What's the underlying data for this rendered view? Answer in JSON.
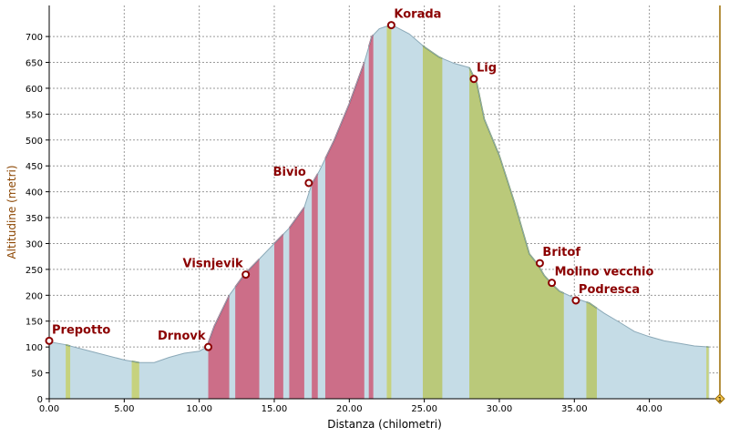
{
  "chart_data": {
    "type": "area",
    "xlabel": "Distanza (chilometri)",
    "ylabel": "Altitudine (metri)",
    "xlim": [
      0,
      44.7
    ],
    "ylim": [
      0,
      760
    ],
    "x_ticks": [
      0,
      5,
      10,
      15,
      20,
      25,
      30,
      35,
      40
    ],
    "x_tick_labels": [
      "0.00",
      "5.00",
      "10.00",
      "15.00",
      "20.00",
      "25.00",
      "30.00",
      "35.00",
      "40.00"
    ],
    "y_ticks": [
      0,
      50,
      100,
      150,
      200,
      250,
      300,
      350,
      400,
      450,
      500,
      550,
      600,
      650,
      700
    ],
    "y_tick_labels": [
      "0",
      "50",
      "100",
      "150",
      "200",
      "250",
      "300",
      "350",
      "400",
      "450",
      "500",
      "550",
      "600",
      "650",
      "700"
    ],
    "grid": true,
    "profile": {
      "x": [
        0,
        1,
        3,
        5,
        6,
        7,
        8,
        9,
        10,
        10.5,
        11,
        12,
        13,
        14,
        15,
        16,
        17,
        17.5,
        18,
        19,
        20,
        20.5,
        21,
        21.5,
        22,
        22.5,
        23,
        24,
        25,
        26,
        27,
        28,
        28.5,
        29,
        30,
        31,
        32,
        32.5,
        33,
        33.5,
        34,
        35,
        36,
        37,
        38,
        39,
        40,
        41,
        42,
        43,
        44
      ],
      "y": [
        110,
        105,
        90,
        75,
        70,
        70,
        80,
        88,
        92,
        100,
        140,
        200,
        240,
        270,
        300,
        330,
        370,
        415,
        440,
        500,
        570,
        610,
        650,
        700,
        715,
        720,
        720,
        705,
        680,
        660,
        648,
        640,
        610,
        540,
        470,
        380,
        280,
        262,
        238,
        222,
        208,
        195,
        185,
        165,
        148,
        130,
        120,
        112,
        107,
        102,
        100
      ]
    },
    "climb_segments": [
      [
        10.6,
        12.0
      ],
      [
        12.4,
        14.0
      ],
      [
        15.0,
        15.6
      ],
      [
        16.0,
        17.0
      ],
      [
        17.5,
        17.9
      ],
      [
        18.4,
        21.0
      ],
      [
        21.3,
        21.6
      ]
    ],
    "descent_segments": [
      [
        24.9,
        26.2
      ],
      [
        28.0,
        34.3
      ],
      [
        35.8,
        36.5
      ]
    ],
    "flat_segments": [
      [
        1.1,
        1.4
      ],
      [
        5.5,
        6.0
      ],
      [
        22.5,
        22.8
      ],
      [
        43.8,
        43.95
      ]
    ],
    "series": [
      {
        "name": "",
        "color": "#c5dce6"
      },
      {
        "name": "",
        "color": "#c8244c"
      },
      {
        "name": "",
        "color": "#9bb536"
      }
    ],
    "waypoints": [
      {
        "name": "Prepotto",
        "x": 0.0,
        "y": 112,
        "label_side": "right"
      },
      {
        "name": "Drnovk",
        "x": 10.6,
        "y": 100,
        "label_side": "left"
      },
      {
        "name": "Visnjevik",
        "x": 13.1,
        "y": 240,
        "label_side": "left"
      },
      {
        "name": "Bivio",
        "x": 17.3,
        "y": 417,
        "label_side": "left"
      },
      {
        "name": "Korada",
        "x": 22.8,
        "y": 722,
        "label_side": "right"
      },
      {
        "name": "Lig",
        "x": 28.3,
        "y": 618,
        "label_side": "right"
      },
      {
        "name": "Britof",
        "x": 32.7,
        "y": 262,
        "label_side": "right"
      },
      {
        "name": "Molino vecchio",
        "x": 33.5,
        "y": 224,
        "label_side": "right"
      },
      {
        "name": "Podresca",
        "x": 35.1,
        "y": 190,
        "label_side": "right"
      }
    ],
    "end_marker": {
      "label": "1",
      "x": 44.7
    }
  },
  "colors": {
    "background": "#ffffff",
    "plot_background": "#ffffff",
    "grid": "#9a9a9a",
    "profile_fill": "#c5dce6",
    "profile_line": "#8ba9b8",
    "climb_fill": "#cc6e88",
    "climb_line": "#b01c40",
    "descent_fill": "#bac97a",
    "descent_line": "#6e8b1a",
    "flat_fill": "#c6d27e",
    "waypoint": "#8b0000",
    "axis_title_x": "#000000",
    "axis_title_y": "#8b4500",
    "end_marker_line": "#9b6b00",
    "end_marker_fill": "#f0c24d"
  }
}
